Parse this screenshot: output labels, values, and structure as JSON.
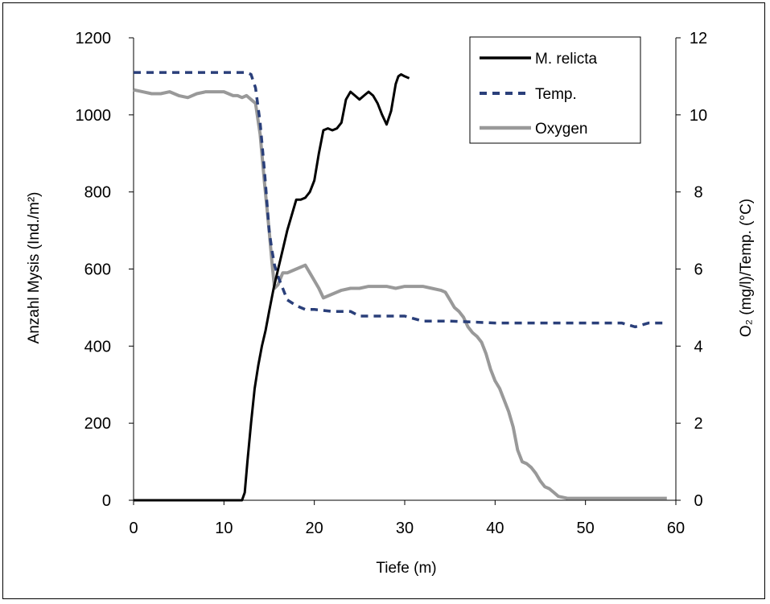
{
  "chart_data": {
    "type": "line",
    "title": "",
    "xlabel": "Tiefe (m)",
    "ylabel_left": "Anzahl Mysis (Ind./m²)",
    "ylabel_right": "O₂ (mg/l)/Temp. (°C)",
    "xlim": [
      0,
      60
    ],
    "ylim_left": [
      0,
      1200
    ],
    "ylim_right": [
      0,
      12
    ],
    "x_ticks": [
      "0",
      "10",
      "20",
      "30",
      "40",
      "50",
      "60"
    ],
    "y_left_ticks": [
      "0",
      "200",
      "400",
      "600",
      "800",
      "1000",
      "1200"
    ],
    "y_right_ticks": [
      "0",
      "2",
      "4",
      "6",
      "8",
      "10",
      "12"
    ],
    "grid": false,
    "legend_position": "top-right",
    "series": [
      {
        "name": "M. relicta",
        "axis": "left",
        "color": "#000000",
        "style": "solid",
        "x": [
          0,
          2,
          4,
          6,
          8,
          10,
          12,
          12.3,
          12.6,
          13.0,
          13.4,
          13.8,
          14.2,
          14.6,
          15.0,
          15.5,
          16.0,
          16.5,
          17.0,
          17.5,
          18.0,
          18.5,
          19.0,
          19.5,
          20.0,
          20.5,
          21.0,
          21.5,
          22.0,
          22.5,
          23.0,
          23.5,
          24.0,
          24.5,
          25.0,
          25.5,
          26.0,
          26.5,
          27.0,
          27.5,
          28.0,
          28.5,
          29.0,
          29.3,
          29.6,
          30.0,
          30.5
        ],
        "values": [
          0,
          0,
          0,
          0,
          0,
          0,
          0,
          20,
          100,
          200,
          290,
          350,
          400,
          440,
          490,
          550,
          600,
          650,
          700,
          740,
          780,
          780,
          785,
          800,
          830,
          900,
          960,
          965,
          960,
          965,
          980,
          1040,
          1060,
          1050,
          1040,
          1050,
          1060,
          1050,
          1030,
          1000,
          975,
          1010,
          1080,
          1100,
          1105,
          1100,
          1095
        ]
      },
      {
        "name": "Temp.",
        "axis": "right",
        "color": "#2a3f7a",
        "style": "dashed",
        "x": [
          0,
          5,
          10,
          12.5,
          13.0,
          13.5,
          14.0,
          14.5,
          15.0,
          15.3,
          15.6,
          16.0,
          16.5,
          17,
          18,
          19,
          20,
          22,
          24,
          25,
          28,
          30,
          32,
          35,
          38,
          40,
          45,
          50,
          54,
          55.5,
          57,
          59
        ],
        "values": [
          11.1,
          11.1,
          11.1,
          11.1,
          11.05,
          10.7,
          9.8,
          8.5,
          7.0,
          6.5,
          6.1,
          5.8,
          5.5,
          5.2,
          5.05,
          4.95,
          4.95,
          4.9,
          4.9,
          4.78,
          4.78,
          4.78,
          4.65,
          4.65,
          4.62,
          4.6,
          4.6,
          4.6,
          4.6,
          4.5,
          4.6,
          4.6
        ]
      },
      {
        "name": "Oxygen",
        "axis": "right",
        "color": "#999999",
        "style": "solid",
        "x": [
          0,
          1,
          2,
          3,
          4,
          5,
          6,
          7,
          8,
          9,
          10,
          11,
          11.5,
          12,
          12.5,
          13,
          13.5,
          14,
          14.5,
          15,
          15.3,
          15.6,
          16,
          16.5,
          17,
          17.5,
          18,
          18.5,
          19,
          19.5,
          20,
          20.5,
          21,
          21.5,
          22,
          23,
          24,
          25,
          26,
          27,
          28,
          29,
          30,
          31,
          32,
          33,
          34,
          34.5,
          35,
          35.5,
          36,
          36.5,
          37,
          37.5,
          38,
          38.5,
          39,
          39.5,
          40,
          40.5,
          41,
          41.5,
          42,
          42.5,
          43,
          43.5,
          44,
          44.5,
          45,
          45.5,
          46,
          46.5,
          47,
          48,
          50,
          55,
          59
        ],
        "values": [
          10.65,
          10.6,
          10.55,
          10.55,
          10.6,
          10.5,
          10.45,
          10.55,
          10.6,
          10.6,
          10.6,
          10.5,
          10.5,
          10.45,
          10.5,
          10.4,
          10.3,
          9.5,
          8.2,
          7.0,
          6.2,
          5.5,
          5.6,
          5.9,
          5.9,
          5.95,
          6.0,
          6.05,
          6.1,
          5.9,
          5.7,
          5.5,
          5.25,
          5.3,
          5.35,
          5.45,
          5.5,
          5.5,
          5.55,
          5.55,
          5.55,
          5.5,
          5.55,
          5.55,
          5.55,
          5.5,
          5.45,
          5.4,
          5.2,
          5.0,
          4.9,
          4.75,
          4.5,
          4.35,
          4.25,
          4.1,
          3.8,
          3.4,
          3.1,
          2.9,
          2.6,
          2.3,
          1.9,
          1.3,
          1.0,
          0.95,
          0.85,
          0.7,
          0.5,
          0.35,
          0.3,
          0.2,
          0.1,
          0.05,
          0.05,
          0.05,
          0.05
        ]
      }
    ]
  }
}
